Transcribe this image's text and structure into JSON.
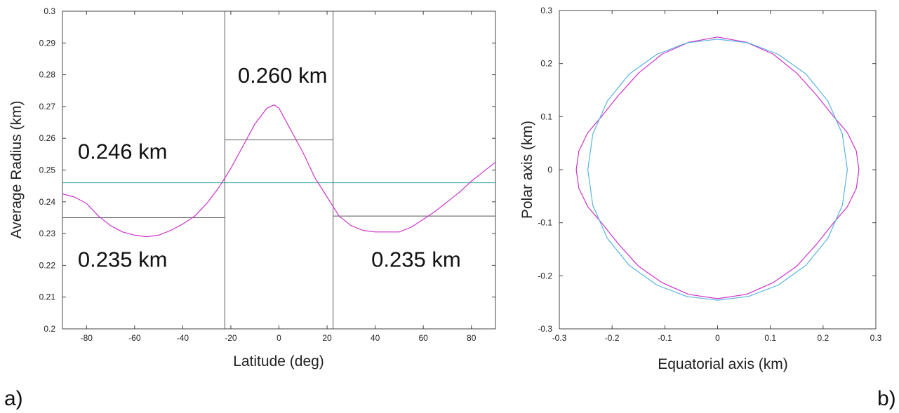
{
  "chart_data": [
    {
      "type": "line",
      "panel_label": "a)",
      "xlabel": "Latitude (deg)",
      "ylabel": "Average Radius (km)",
      "xlim": [
        -90,
        90
      ],
      "ylim": [
        0.2,
        0.3
      ],
      "xticks": [
        -80,
        -60,
        -40,
        -20,
        0,
        20,
        40,
        60,
        80
      ],
      "yticks": [
        0.2,
        0.21,
        0.22,
        0.23,
        0.24,
        0.25,
        0.26,
        0.27,
        0.28,
        0.29,
        0.3
      ],
      "ytick_labels": [
        "0.2",
        "0.21",
        "0.22",
        "0.23",
        "0.24",
        "0.25",
        "0.26",
        "0.27",
        "0.28",
        "0.29",
        "0.3"
      ],
      "grid": false,
      "series": [
        {
          "color": "#cc33cc",
          "x": [
            -90,
            -85,
            -80,
            -75,
            -70,
            -65,
            -60,
            -55,
            -50,
            -45,
            -40,
            -35,
            -30,
            -25,
            -20,
            -15,
            -10,
            -5,
            -2,
            0,
            5,
            10,
            15,
            20,
            25,
            30,
            35,
            40,
            45,
            50,
            55,
            60,
            65,
            70,
            75,
            80,
            85,
            90
          ],
          "y": [
            0.2425,
            0.2415,
            0.2395,
            0.2355,
            0.2325,
            0.2305,
            0.2295,
            0.229,
            0.2295,
            0.231,
            0.233,
            0.2355,
            0.2395,
            0.2445,
            0.2505,
            0.2575,
            0.2645,
            0.2695,
            0.2705,
            0.2695,
            0.2625,
            0.2555,
            0.2475,
            0.2415,
            0.2355,
            0.2325,
            0.231,
            0.2305,
            0.2305,
            0.2305,
            0.232,
            0.2345,
            0.237,
            0.24,
            0.243,
            0.2465,
            0.2495,
            0.2525
          ]
        }
      ],
      "reference_lines": [
        {
          "type": "horizontal",
          "y": 0.246,
          "x_range": [
            -90,
            90
          ],
          "color": "#3aa6a6"
        },
        {
          "type": "horizontal",
          "y": 0.235,
          "x_range": [
            -90,
            -22.5
          ],
          "color": "#555555"
        },
        {
          "type": "horizontal",
          "y": 0.2595,
          "x_range": [
            -22.5,
            22.5
          ],
          "color": "#555555"
        },
        {
          "type": "horizontal",
          "y": 0.2355,
          "x_range": [
            22.5,
            90
          ],
          "color": "#555555"
        },
        {
          "type": "vertical",
          "x": -22.5,
          "color": "#555555"
        },
        {
          "type": "vertical",
          "x": 22.5,
          "color": "#555555"
        }
      ],
      "annotations": [
        {
          "text": "0.260 km",
          "x": 1.5,
          "y": 0.2775
        },
        {
          "text": "0.246 km",
          "x": -65,
          "y": 0.2535
        },
        {
          "text": "0.235 km",
          "x": -65,
          "y": 0.2195
        },
        {
          "text": "0.235 km",
          "x": 57,
          "y": 0.2195
        }
      ]
    },
    {
      "type": "line",
      "panel_label": "b)",
      "xlabel": "Equatorial axis (km)",
      "ylabel": "Polar axis (km)",
      "xlim": [
        -0.3,
        0.3
      ],
      "ylim": [
        -0.3,
        0.3
      ],
      "xticks": [
        -0.3,
        -0.2,
        -0.1,
        0,
        0.1,
        0.2,
        0.3
      ],
      "yticks": [
        -0.3,
        -0.2,
        -0.1,
        0,
        0.1,
        0.2,
        0.3
      ],
      "grid": false,
      "series": [
        {
          "color": "#cc33cc",
          "x": [
            0.268,
            0.263,
            0.246,
            0.22,
            0.188,
            0.15,
            0.105,
            0.055,
            0,
            -0.055,
            -0.105,
            -0.15,
            -0.188,
            -0.22,
            -0.246,
            -0.263,
            -0.268,
            -0.263,
            -0.246,
            -0.22,
            -0.188,
            -0.15,
            -0.105,
            -0.055,
            0,
            0.055,
            0.105,
            0.15,
            0.188,
            0.22,
            0.246,
            0.263,
            0.268
          ],
          "y": [
            0,
            0.035,
            0.07,
            0.1,
            0.14,
            0.182,
            0.218,
            0.24,
            0.25,
            0.24,
            0.218,
            0.182,
            0.14,
            0.1,
            0.07,
            0.035,
            0,
            -0.035,
            -0.07,
            -0.1,
            -0.14,
            -0.182,
            -0.213,
            -0.235,
            -0.243,
            -0.235,
            -0.213,
            -0.182,
            -0.14,
            -0.1,
            -0.07,
            -0.035,
            0
          ]
        },
        {
          "color": "#5ab4dc",
          "x": [
            0.246,
            0.2366,
            0.2092,
            0.1675,
            0.1151,
            0.0586,
            0,
            -0.0586,
            -0.1151,
            -0.1675,
            -0.2092,
            -0.2366,
            -0.246,
            -0.2366,
            -0.2092,
            -0.1675,
            -0.1151,
            -0.0586,
            0,
            0.0586,
            0.1151,
            0.1675,
            0.2092,
            0.2366,
            0.246
          ],
          "y": [
            0,
            0.0672,
            0.1293,
            0.1802,
            0.2174,
            0.2389,
            0.246,
            0.2389,
            0.2174,
            0.1802,
            0.1293,
            0.0672,
            0,
            -0.0672,
            -0.1293,
            -0.1802,
            -0.2174,
            -0.2389,
            -0.246,
            -0.2389,
            -0.2174,
            -0.1802,
            -0.1293,
            -0.0672,
            0
          ]
        }
      ]
    }
  ]
}
